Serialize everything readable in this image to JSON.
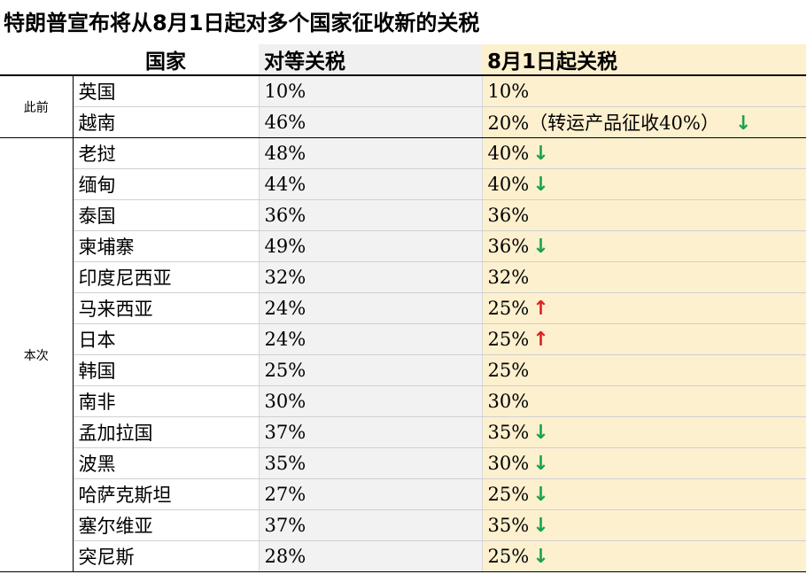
{
  "title": "特朗普宣布将从8月1日起对多个国家征收新的关税",
  "headers": {
    "country": "国家",
    "reciprocal": "对等关税",
    "new": "8月1日起关税"
  },
  "colors": {
    "down_arrow": "#1aa34a",
    "up_arrow": "#e02020",
    "new_col_bg": "#fdf0cf",
    "reciprocal_col_bg": "#f2f2f2"
  },
  "groups": [
    {
      "label": "此前",
      "rows": [
        {
          "country": "英国",
          "reciprocal": "10%",
          "new": "10%",
          "trend": ""
        },
        {
          "country": "越南",
          "reciprocal": "46%",
          "new": "20%（转运产品征收40%）",
          "trend": "down"
        }
      ]
    },
    {
      "label": "本次",
      "rows": [
        {
          "country": "老挝",
          "reciprocal": "48%",
          "new": "40%",
          "trend": "down"
        },
        {
          "country": "缅甸",
          "reciprocal": "44%",
          "new": "40%",
          "trend": "down"
        },
        {
          "country": "泰国",
          "reciprocal": "36%",
          "new": "36%",
          "trend": ""
        },
        {
          "country": "柬埔寨",
          "reciprocal": "49%",
          "new": "36%",
          "trend": "down"
        },
        {
          "country": "印度尼西亚",
          "reciprocal": "32%",
          "new": "32%",
          "trend": ""
        },
        {
          "country": "马来西亚",
          "reciprocal": "24%",
          "new": "25%",
          "trend": "up"
        },
        {
          "country": "日本",
          "reciprocal": "24%",
          "new": "25%",
          "trend": "up"
        },
        {
          "country": "韩国",
          "reciprocal": "25%",
          "new": "25%",
          "trend": ""
        },
        {
          "country": "南非",
          "reciprocal": "30%",
          "new": "30%",
          "trend": ""
        },
        {
          "country": "孟加拉国",
          "reciprocal": "37%",
          "new": "35%",
          "trend": "down"
        },
        {
          "country": "波黑",
          "reciprocal": "35%",
          "new": "30%",
          "trend": "down"
        },
        {
          "country": "哈萨克斯坦",
          "reciprocal": "27%",
          "new": "25%",
          "trend": "down"
        },
        {
          "country": "塞尔维亚",
          "reciprocal": "37%",
          "new": "35%",
          "trend": "down"
        },
        {
          "country": "突尼斯",
          "reciprocal": "28%",
          "new": "25%",
          "trend": "down"
        }
      ]
    }
  ]
}
